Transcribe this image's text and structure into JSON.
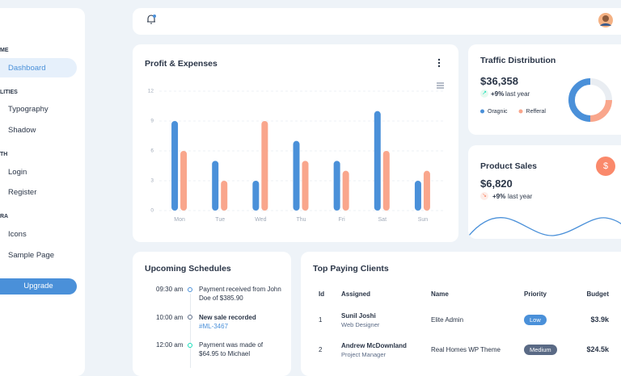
{
  "sidebar": {
    "sections": [
      {
        "heading": "ME",
        "items": [
          "Dashboard"
        ]
      },
      {
        "heading": "LITIES",
        "items": [
          "Typography",
          "Shadow"
        ]
      },
      {
        "heading": "TH",
        "items": [
          "Login",
          "Register"
        ]
      },
      {
        "heading": "RA",
        "items": [
          "Icons",
          "Sample Page"
        ]
      }
    ],
    "button": "Upgrade"
  },
  "traffic": {
    "title": "Traffic Distribution",
    "amount": "$36,358",
    "change": "+9%",
    "period": "last year"
  },
  "sales": {
    "title": "Product Sales",
    "amount": "$6,820",
    "change": "+9%",
    "period": "last year",
    "icon": "$"
  },
  "schedules": {
    "title": "Upcoming Schedules",
    "items": [
      {
        "time": "09:30 am",
        "lines": [
          "Payment received from John",
          "Doe of $385.90"
        ]
      },
      {
        "time": "10:00 am",
        "lines": [
          "New sale recorded",
          "#ML-3467"
        ]
      },
      {
        "time": "12:00 am",
        "lines": [
          "Payment was made of",
          "$64.95 to Michael"
        ]
      }
    ]
  },
  "clients": {
    "title": "Top Paying Clients",
    "columns": [
      "Id",
      "Assigned",
      "Name",
      "Priority",
      "Budget"
    ],
    "rows": [
      {
        "id": 1,
        "assigned": "Sunil Joshi",
        "role": "Web Designer",
        "name": "Elite Admin",
        "priority": "Low",
        "budget": "$3.9k"
      },
      {
        "id": 2,
        "assigned": "Andrew McDownland",
        "role": "Project Manager",
        "name": "Real Homes WP Theme",
        "priority": "Medium",
        "budget": "$24.5k"
      }
    ]
  },
  "chart_data": [
    {
      "type": "bar",
      "title": "Profit & Expenses",
      "categories": [
        "Mon",
        "Tue",
        "Wed",
        "Thu",
        "Fri",
        "Sat",
        "Sun"
      ],
      "series": [
        {
          "color": "#4a90d9",
          "values": [
            9,
            5,
            3,
            7,
            5,
            10,
            3
          ]
        },
        {
          "color": "#f9a68c",
          "values": [
            6,
            3,
            9,
            5,
            4,
            6,
            4
          ]
        }
      ],
      "ylim": [
        0,
        12
      ],
      "yticks": [
        0,
        3,
        6,
        9,
        12
      ],
      "grid": true
    },
    {
      "type": "donut",
      "categories": [
        "Oragnic",
        "Refferal",
        null
      ],
      "values": [
        50,
        25,
        25
      ],
      "colors": [
        "#4a90d9",
        "#f9a68c",
        "#e9edf2"
      ]
    }
  ]
}
